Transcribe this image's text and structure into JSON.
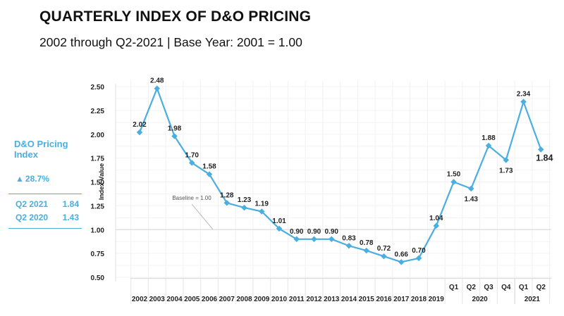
{
  "header": {
    "title": "QUARTERLY INDEX OF D&O PRICING",
    "subtitle": "2002 through Q2-2021 | Base Year: 2001 = 1.00"
  },
  "sidebar": {
    "name": "D&O Pricing Index",
    "change_icon": "triangle-up-icon",
    "change_glyph": "▲",
    "change": "28.7%",
    "rows": [
      {
        "label": "Q2 2021",
        "value": "1.84"
      },
      {
        "label": "Q2 2020",
        "value": "1.43"
      }
    ],
    "accent": "#4aaee0"
  },
  "chart_data": {
    "type": "line",
    "title": "QUARTERLY INDEX OF D&O PRICING",
    "subtitle": "2002 through Q2-2021 | Base Year: 2001 = 1.00",
    "xlabel": "",
    "ylabel": "Index Value",
    "ylim": [
      0.5,
      2.5
    ],
    "yticks": [
      "2.50",
      "2.25",
      "2.00",
      "1.75",
      "1.50",
      "1.25",
      "1.00",
      "0.75",
      "0.50"
    ],
    "grid": true,
    "line_color": "#4aaee0",
    "categories": [
      "2002",
      "2003",
      "2004",
      "2005",
      "2006",
      "2007",
      "2008",
      "2009",
      "2010",
      "2011",
      "2012",
      "2013",
      "2014",
      "2015",
      "2016",
      "2017",
      "2018",
      "2019",
      "Q1",
      "Q2",
      "Q3",
      "Q4",
      "Q1",
      "Q2"
    ],
    "category_groups": [
      {
        "label": "2020",
        "members": [
          "Q1",
          "Q2",
          "Q3",
          "Q4"
        ]
      },
      {
        "label": "2021",
        "members": [
          "Q1",
          "Q2"
        ]
      }
    ],
    "series": [
      {
        "name": "D&O Pricing Index",
        "values": [
          2.02,
          2.48,
          1.98,
          1.7,
          1.58,
          1.28,
          1.23,
          1.19,
          1.01,
          0.9,
          0.9,
          0.9,
          0.83,
          0.78,
          0.72,
          0.66,
          0.7,
          1.04,
          1.5,
          1.43,
          1.88,
          1.73,
          2.34,
          1.84
        ],
        "labels": [
          "2.02",
          "2.48",
          "1.98",
          "1.70",
          "1.58",
          "1.28",
          "1.23",
          "1.19",
          "1.01",
          "0.90",
          "0.90",
          "0.90",
          "0.83",
          "0.78",
          "0.72",
          "0.66",
          "0.70",
          "1.04",
          "1.50",
          "1.43",
          "1.88",
          "1.73",
          "2.34",
          "1.84"
        ]
      }
    ],
    "baseline": {
      "value": 1.0,
      "label": "Baseline = 1.00"
    }
  }
}
